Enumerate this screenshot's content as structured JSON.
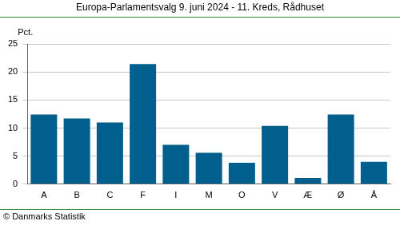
{
  "chart_data": {
    "type": "bar",
    "title": "Europa-Parlamentsvalg 9. juni 2024 - 11. Kreds, Rådhuset",
    "ylabel": "Pct.",
    "source": "© Danmarks Statistik",
    "categories": [
      "A",
      "B",
      "C",
      "F",
      "I",
      "M",
      "O",
      "V",
      "Æ",
      "Ø",
      "Å"
    ],
    "values": [
      12.4,
      11.7,
      11.0,
      21.4,
      7.0,
      5.6,
      3.8,
      10.4,
      1.1,
      12.4,
      4.0
    ],
    "color": "#005f8c",
    "ylim": [
      0,
      25
    ],
    "yticks": [
      0,
      5,
      10,
      15,
      20,
      25
    ],
    "grid": true
  }
}
